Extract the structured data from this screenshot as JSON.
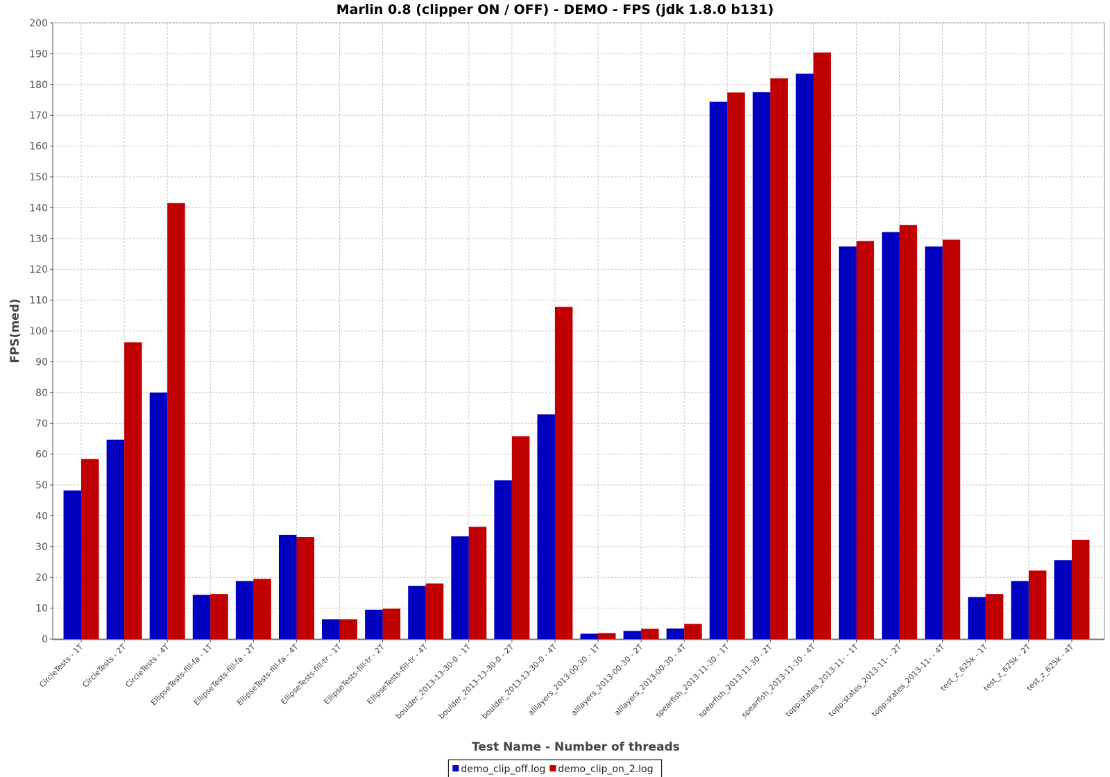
{
  "chart_data": {
    "type": "bar",
    "title": "Marlin 0.8 (clipper ON / OFF) - DEMO - FPS (jdk 1.8.0 b131)",
    "xlabel": "Test Name - Number of threads",
    "ylabel": "FPS(med)",
    "ylim": [
      0,
      200
    ],
    "y_ticks": [
      0,
      10,
      20,
      30,
      40,
      50,
      60,
      70,
      80,
      90,
      100,
      110,
      120,
      130,
      140,
      150,
      160,
      170,
      180,
      190,
      200
    ],
    "grid": true,
    "legend_position": "bottom-center",
    "categories": [
      "CircleTests - 1T",
      "CircleTests - 2T",
      "CircleTests - 4T",
      "EllipseTests-fill-fa - 1T",
      "EllipseTests-fill-fa - 2T",
      "EllipseTests-fill-fa - 4T",
      "EllipseTests-fill-tr - 1T",
      "EllipseTests-fill-tr - 2T",
      "EllipseTests-fill-tr - 4T",
      "boulder_2013-13-30-0 - 1T",
      "boulder_2013-13-30-0 - 2T",
      "boulder_2013-13-30-0 - 4T",
      "alllayers_2013-00-30 - 1T",
      "alllayers_2013-00-30 - 2T",
      "alllayers_2013-00-30 - 4T",
      "spearfish_2013-11-30 - 1T",
      "spearfish_2013-11-30 - 2T",
      "spearfish_2013-11-30 - 4T",
      "topp:states_2013-11- - 1T",
      "topp:states_2013-11- - 2T",
      "topp:states_2013-11- - 4T",
      "test_z_625k - 1T",
      "test_z_625k - 2T",
      "test_z_625k - 4T"
    ],
    "series": [
      {
        "name": "demo_clip_off.log",
        "color": "#0000c0",
        "values": [
          48.2,
          64.7,
          80.0,
          14.3,
          18.8,
          33.8,
          6.4,
          9.5,
          17.2,
          33.3,
          51.5,
          72.9,
          1.7,
          2.6,
          3.4,
          174.4,
          177.5,
          183.5,
          127.4,
          132.1,
          127.4,
          13.6,
          18.8,
          25.6
        ]
      },
      {
        "name": "demo_clip_on_2.log",
        "color": "#c00000",
        "values": [
          58.4,
          96.3,
          141.5,
          14.6,
          19.5,
          33.1,
          6.4,
          9.8,
          18.0,
          36.4,
          65.8,
          107.8,
          1.9,
          3.3,
          4.9,
          177.4,
          182.0,
          190.4,
          129.2,
          134.4,
          129.6,
          14.6,
          22.2,
          32.2
        ]
      }
    ]
  }
}
